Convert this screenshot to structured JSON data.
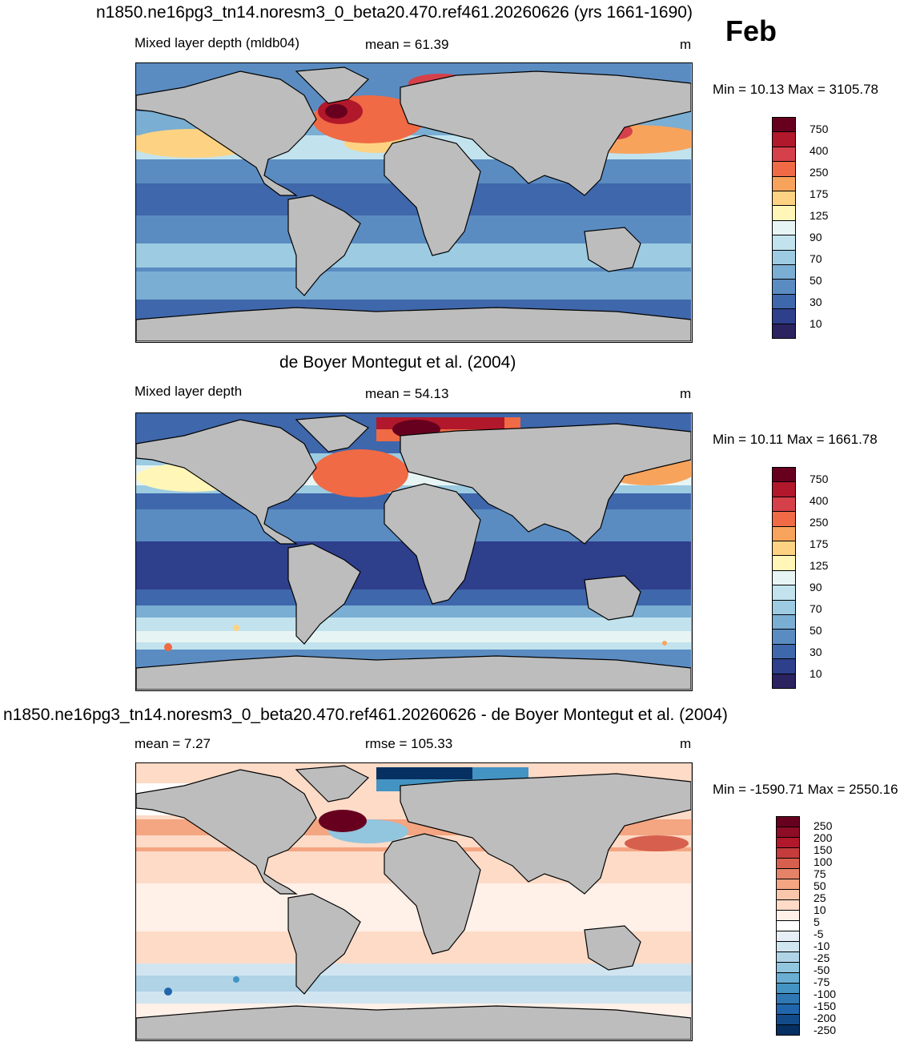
{
  "figure": {
    "month": "Feb"
  },
  "panels": [
    {
      "title": "n1850.ne16pg3_tn14.noresm3_0_beta20.470.ref461.20260626 (yrs 1661-1690)",
      "left_label": "Mixed layer depth (mldb04)",
      "center_label": "mean =  61.39",
      "units": "m",
      "minmax": "Min =  10.13 Max = 3105.78",
      "colorbar": {
        "labels": [
          "750",
          "400",
          "250",
          "175",
          "125",
          "90",
          "70",
          "50",
          "30",
          "10"
        ],
        "colors": [
          "#67001f",
          "#b2182b",
          "#d6404a",
          "#ef6a45",
          "#f8a35c",
          "#fdd383",
          "#fff6b8",
          "#e7f4f4",
          "#c2e3ee",
          "#9ccbe2",
          "#7aaed3",
          "#5a8cc2",
          "#3f67ab",
          "#2e3f8c",
          "#2a2360"
        ]
      }
    },
    {
      "title": "de Boyer Montegut et al. (2004)",
      "left_label": "Mixed layer depth",
      "center_label": "mean =  54.13",
      "units": "m",
      "minmax": "Min =  10.11 Max = 1661.78",
      "colorbar": {
        "labels": [
          "750",
          "400",
          "250",
          "175",
          "125",
          "90",
          "70",
          "50",
          "30",
          "10"
        ],
        "colors": [
          "#67001f",
          "#b2182b",
          "#d6404a",
          "#ef6a45",
          "#f8a35c",
          "#fdd383",
          "#fff6b8",
          "#e7f4f4",
          "#c2e3ee",
          "#9ccbe2",
          "#7aaed3",
          "#5a8cc2",
          "#3f67ab",
          "#2e3f8c",
          "#2a2360"
        ]
      }
    },
    {
      "title": "n1850.ne16pg3_tn14.noresm3_0_beta20.470.ref461.20260626 - de Boyer Montegut et al. (2004)",
      "left_label": "mean =   7.27",
      "center_label": "rmse = 105.33",
      "units": "m",
      "minmax": "Min = -1590.71 Max = 2550.16",
      "colorbar": {
        "labels": [
          "250",
          "200",
          "150",
          "100",
          "75",
          "50",
          "25",
          "10",
          "5",
          "-5",
          "-10",
          "-25",
          "-50",
          "-75",
          "-100",
          "-150",
          "-200",
          "-250"
        ],
        "colors": [
          "#67001f",
          "#8e0c25",
          "#b2182b",
          "#c43c3c",
          "#d6604d",
          "#e58268",
          "#f4a582",
          "#f9c6ac",
          "#fddbc7",
          "#fff0e8",
          "#ffffff",
          "#e6eff5",
          "#d1e5f0",
          "#b0d3e6",
          "#92c5de",
          "#6aaed3",
          "#4393c3",
          "#3078b4",
          "#2166ac",
          "#134b8a",
          "#053061"
        ]
      }
    }
  ]
}
